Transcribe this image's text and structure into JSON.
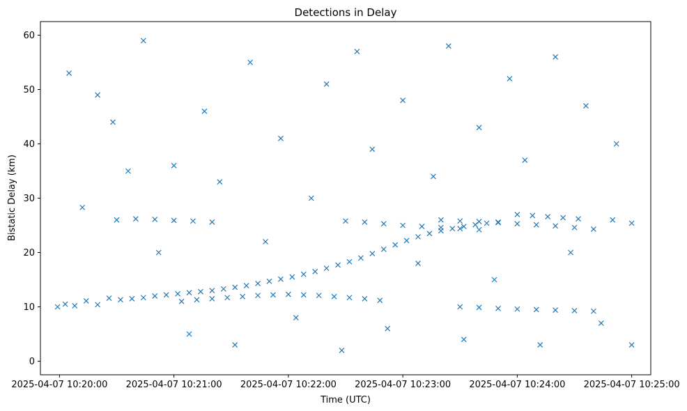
{
  "chart_data": {
    "type": "scatter",
    "title": "Detections in Delay",
    "xlabel": "Time (UTC)",
    "ylabel": "Bistatic Delay (km)",
    "x_axis": {
      "type": "time",
      "range": [
        "2025-04-07 10:19:50",
        "2025-04-07 10:25:10"
      ],
      "ticks": [
        "2025-04-07 10:20:00",
        "2025-04-07 10:21:00",
        "2025-04-07 10:22:00",
        "2025-04-07 10:23:00",
        "2025-04-07 10:24:00",
        "2025-04-07 10:25:00"
      ]
    },
    "y_axis": {
      "range": [
        -2.5,
        62.5
      ],
      "ticks": [
        0,
        10,
        20,
        30,
        40,
        50,
        60
      ]
    },
    "grid": false,
    "marker": "x",
    "color": "#1f77b4",
    "series": [
      {
        "points": [
          [
            "2025-04-07 10:19:59",
            10.0
          ],
          [
            "2025-04-07 10:20:03",
            10.5
          ],
          [
            "2025-04-07 10:20:08",
            10.2
          ],
          [
            "2025-04-07 10:20:14",
            11.1
          ],
          [
            "2025-04-07 10:20:20",
            10.4
          ],
          [
            "2025-04-07 10:20:26",
            11.6
          ],
          [
            "2025-04-07 10:20:32",
            11.3
          ],
          [
            "2025-04-07 10:20:38",
            11.5
          ],
          [
            "2025-04-07 10:20:44",
            11.7
          ],
          [
            "2025-04-07 10:20:50",
            12.0
          ],
          [
            "2025-04-07 10:20:56",
            12.2
          ],
          [
            "2025-04-07 10:21:02",
            12.4
          ],
          [
            "2025-04-07 10:21:08",
            12.6
          ],
          [
            "2025-04-07 10:21:14",
            12.8
          ],
          [
            "2025-04-07 10:21:20",
            13.0
          ],
          [
            "2025-04-07 10:21:26",
            13.3
          ],
          [
            "2025-04-07 10:21:32",
            13.6
          ],
          [
            "2025-04-07 10:21:38",
            13.9
          ],
          [
            "2025-04-07 10:21:44",
            14.3
          ],
          [
            "2025-04-07 10:21:50",
            14.7
          ],
          [
            "2025-04-07 10:21:56",
            15.1
          ],
          [
            "2025-04-07 10:22:02",
            15.5
          ],
          [
            "2025-04-07 10:22:08",
            16.0
          ],
          [
            "2025-04-07 10:22:14",
            16.5
          ],
          [
            "2025-04-07 10:22:20",
            17.1
          ],
          [
            "2025-04-07 10:22:26",
            17.7
          ],
          [
            "2025-04-07 10:22:32",
            18.3
          ],
          [
            "2025-04-07 10:22:38",
            19.0
          ],
          [
            "2025-04-07 10:22:44",
            19.8
          ],
          [
            "2025-04-07 10:22:50",
            20.6
          ],
          [
            "2025-04-07 10:22:56",
            21.4
          ],
          [
            "2025-04-07 10:23:02",
            22.2
          ],
          [
            "2025-04-07 10:23:08",
            22.9
          ],
          [
            "2025-04-07 10:23:14",
            23.5
          ],
          [
            "2025-04-07 10:23:20",
            24.0
          ],
          [
            "2025-04-07 10:23:26",
            24.4
          ],
          [
            "2025-04-07 10:23:32",
            24.8
          ],
          [
            "2025-04-07 10:23:38",
            25.1
          ],
          [
            "2025-04-07 10:23:44",
            25.4
          ],
          [
            "2025-04-07 10:23:50",
            25.6
          ],
          [
            "2025-04-07 10:21:04",
            11.0
          ],
          [
            "2025-04-07 10:21:12",
            11.3
          ],
          [
            "2025-04-07 10:21:20",
            11.5
          ],
          [
            "2025-04-07 10:21:28",
            11.7
          ],
          [
            "2025-04-07 10:21:36",
            11.9
          ],
          [
            "2025-04-07 10:21:44",
            12.1
          ],
          [
            "2025-04-07 10:21:52",
            12.2
          ],
          [
            "2025-04-07 10:22:00",
            12.3
          ],
          [
            "2025-04-07 10:22:08",
            12.2
          ],
          [
            "2025-04-07 10:22:16",
            12.1
          ],
          [
            "2025-04-07 10:22:24",
            11.9
          ],
          [
            "2025-04-07 10:22:32",
            11.7
          ],
          [
            "2025-04-07 10:22:40",
            11.5
          ],
          [
            "2025-04-07 10:22:48",
            11.2
          ],
          [
            "2025-04-07 10:20:30",
            26.0
          ],
          [
            "2025-04-07 10:20:40",
            26.2
          ],
          [
            "2025-04-07 10:20:50",
            26.1
          ],
          [
            "2025-04-07 10:21:00",
            25.9
          ],
          [
            "2025-04-07 10:21:10",
            25.8
          ],
          [
            "2025-04-07 10:21:20",
            25.6
          ],
          [
            "2025-04-07 10:22:30",
            25.8
          ],
          [
            "2025-04-07 10:22:40",
            25.6
          ],
          [
            "2025-04-07 10:22:50",
            25.3
          ],
          [
            "2025-04-07 10:23:00",
            25.0
          ],
          [
            "2025-04-07 10:23:10",
            24.8
          ],
          [
            "2025-04-07 10:23:20",
            24.6
          ],
          [
            "2025-04-07 10:23:30",
            24.4
          ],
          [
            "2025-04-07 10:23:40",
            24.2
          ],
          [
            "2025-04-07 10:23:20",
            26.0
          ],
          [
            "2025-04-07 10:23:30",
            25.8
          ],
          [
            "2025-04-07 10:23:40",
            25.7
          ],
          [
            "2025-04-07 10:23:50",
            25.5
          ],
          [
            "2025-04-07 10:24:00",
            25.3
          ],
          [
            "2025-04-07 10:24:10",
            25.1
          ],
          [
            "2025-04-07 10:24:20",
            24.9
          ],
          [
            "2025-04-07 10:24:30",
            24.6
          ],
          [
            "2025-04-07 10:24:40",
            24.3
          ],
          [
            "2025-04-07 10:24:50",
            26.0
          ],
          [
            "2025-04-07 10:25:00",
            25.4
          ],
          [
            "2025-04-07 10:24:00",
            27.0
          ],
          [
            "2025-04-07 10:24:08",
            26.8
          ],
          [
            "2025-04-07 10:24:16",
            26.6
          ],
          [
            "2025-04-07 10:24:24",
            26.4
          ],
          [
            "2025-04-07 10:24:32",
            26.2
          ],
          [
            "2025-04-07 10:23:30",
            10.0
          ],
          [
            "2025-04-07 10:23:40",
            9.9
          ],
          [
            "2025-04-07 10:23:50",
            9.7
          ],
          [
            "2025-04-07 10:24:00",
            9.6
          ],
          [
            "2025-04-07 10:24:10",
            9.5
          ],
          [
            "2025-04-07 10:24:20",
            9.4
          ],
          [
            "2025-04-07 10:24:30",
            9.3
          ],
          [
            "2025-04-07 10:24:40",
            9.2
          ],
          [
            "2025-04-07 10:20:05",
            53.0
          ],
          [
            "2025-04-07 10:20:12",
            28.3
          ],
          [
            "2025-04-07 10:20:20",
            49.0
          ],
          [
            "2025-04-07 10:20:28",
            44.0
          ],
          [
            "2025-04-07 10:20:36",
            35.0
          ],
          [
            "2025-04-07 10:20:44",
            59.0
          ],
          [
            "2025-04-07 10:20:52",
            20.0
          ],
          [
            "2025-04-07 10:21:00",
            36.0
          ],
          [
            "2025-04-07 10:21:08",
            5.0
          ],
          [
            "2025-04-07 10:21:16",
            46.0
          ],
          [
            "2025-04-07 10:21:24",
            33.0
          ],
          [
            "2025-04-07 10:21:32",
            3.0
          ],
          [
            "2025-04-07 10:21:40",
            55.0
          ],
          [
            "2025-04-07 10:21:48",
            22.0
          ],
          [
            "2025-04-07 10:21:56",
            41.0
          ],
          [
            "2025-04-07 10:22:04",
            8.0
          ],
          [
            "2025-04-07 10:22:12",
            30.0
          ],
          [
            "2025-04-07 10:22:20",
            51.0
          ],
          [
            "2025-04-07 10:22:28",
            2.0
          ],
          [
            "2025-04-07 10:22:36",
            57.0
          ],
          [
            "2025-04-07 10:22:44",
            39.0
          ],
          [
            "2025-04-07 10:22:52",
            6.0
          ],
          [
            "2025-04-07 10:23:00",
            48.0
          ],
          [
            "2025-04-07 10:23:08",
            18.0
          ],
          [
            "2025-04-07 10:23:16",
            34.0
          ],
          [
            "2025-04-07 10:23:24",
            58.0
          ],
          [
            "2025-04-07 10:23:32",
            4.0
          ],
          [
            "2025-04-07 10:23:40",
            43.0
          ],
          [
            "2025-04-07 10:23:48",
            15.0
          ],
          [
            "2025-04-07 10:23:56",
            52.0
          ],
          [
            "2025-04-07 10:24:04",
            37.0
          ],
          [
            "2025-04-07 10:24:12",
            3.0
          ],
          [
            "2025-04-07 10:24:20",
            56.0
          ],
          [
            "2025-04-07 10:24:28",
            20.0
          ],
          [
            "2025-04-07 10:24:36",
            47.0
          ],
          [
            "2025-04-07 10:24:44",
            7.0
          ],
          [
            "2025-04-07 10:24:52",
            40.0
          ],
          [
            "2025-04-07 10:25:00",
            3.0
          ]
        ]
      }
    ]
  }
}
